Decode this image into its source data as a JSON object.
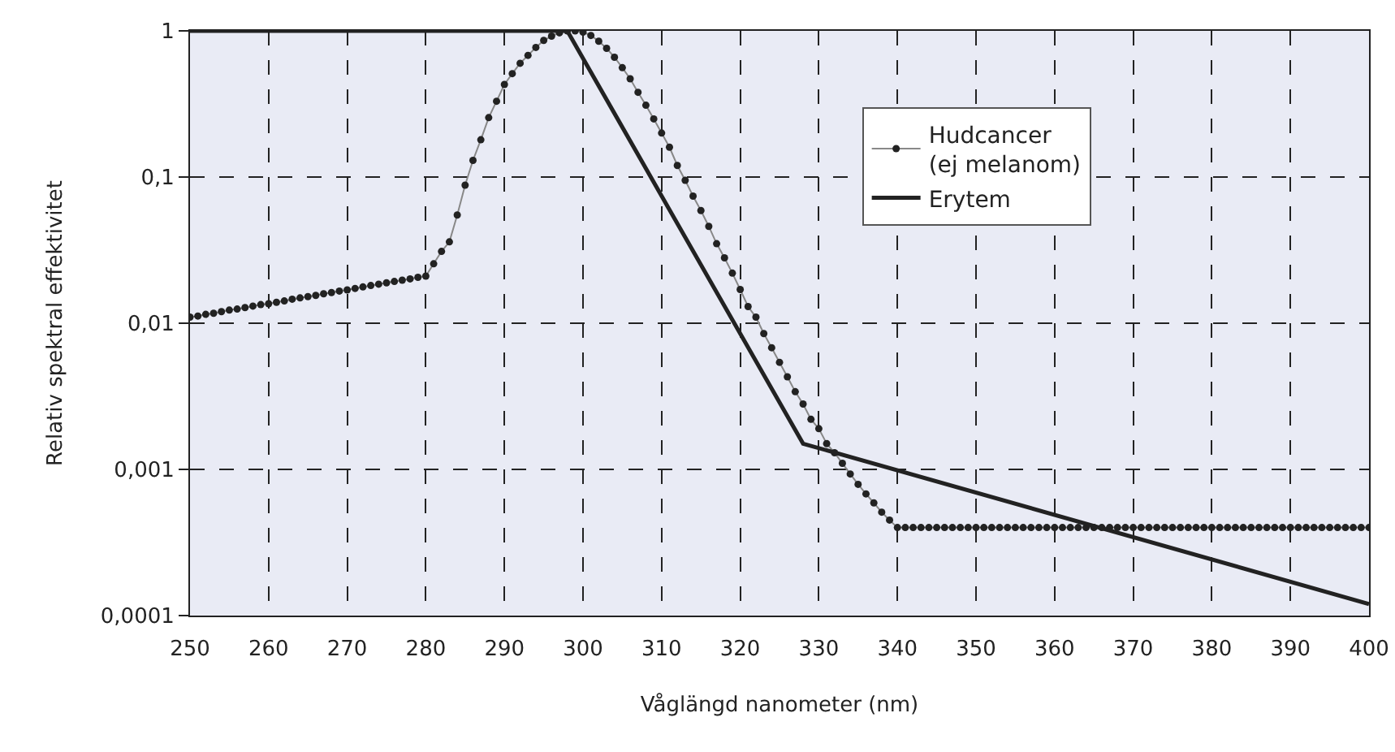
{
  "chart_data": {
    "type": "line",
    "xlabel": "Våglängd nanometer (nm)",
    "ylabel": "Relativ spektral effektivitet",
    "xlim": [
      250,
      400
    ],
    "xticks": [
      250,
      260,
      270,
      280,
      290,
      300,
      310,
      320,
      330,
      340,
      350,
      360,
      370,
      380,
      390,
      400
    ],
    "ylim": [
      0.0001,
      1
    ],
    "yticks": [
      {
        "value": 0.0001,
        "label": "0,0001"
      },
      {
        "value": 0.001,
        "label": "0,001"
      },
      {
        "value": 0.01,
        "label": "0,01"
      },
      {
        "value": 0.1,
        "label": "0,1"
      },
      {
        "value": 1,
        "label": "1"
      }
    ],
    "log": "y",
    "grid": true,
    "legend": "top right",
    "series": [
      {
        "name": "Hudcancer\n(ej melanom)",
        "color": "#222222",
        "marker": "circle",
        "x": [
          250,
          251,
          252,
          253,
          254,
          255,
          256,
          257,
          258,
          259,
          260,
          261,
          262,
          263,
          264,
          265,
          266,
          267,
          268,
          269,
          270,
          271,
          272,
          273,
          274,
          275,
          276,
          277,
          278,
          279,
          280,
          281,
          282,
          283,
          284,
          285,
          286,
          287,
          288,
          289,
          290,
          291,
          292,
          293,
          294,
          295,
          296,
          297,
          298,
          299,
          300,
          301,
          302,
          303,
          304,
          305,
          306,
          307,
          308,
          309,
          310,
          311,
          312,
          313,
          314,
          315,
          316,
          317,
          318,
          319,
          320,
          321,
          322,
          323,
          324,
          325,
          326,
          327,
          328,
          329,
          330,
          331,
          332,
          333,
          334,
          335,
          336,
          337,
          338,
          339,
          340,
          341,
          342,
          343,
          344,
          345,
          346,
          347,
          348,
          349,
          350,
          351,
          352,
          353,
          354,
          355,
          356,
          357,
          358,
          359,
          360,
          361,
          362,
          363,
          364,
          365,
          366,
          367,
          368,
          369,
          370,
          371,
          372,
          373,
          374,
          375,
          376,
          377,
          378,
          379,
          380,
          381,
          382,
          383,
          384,
          385,
          386,
          387,
          388,
          389,
          390,
          391,
          392,
          393,
          394,
          395,
          396,
          397,
          398,
          399,
          400
        ],
        "values": [
          0.011,
          0.0112,
          0.0115,
          0.0117,
          0.012,
          0.0123,
          0.0125,
          0.0128,
          0.0131,
          0.0134,
          0.0136,
          0.0139,
          0.0142,
          0.0146,
          0.0149,
          0.0152,
          0.0155,
          0.0159,
          0.0162,
          0.0166,
          0.0169,
          0.0173,
          0.0177,
          0.0181,
          0.0185,
          0.0189,
          0.0193,
          0.0197,
          0.0201,
          0.0206,
          0.021,
          0.0255,
          0.031,
          0.036,
          0.055,
          0.088,
          0.13,
          0.18,
          0.255,
          0.33,
          0.43,
          0.51,
          0.6,
          0.68,
          0.77,
          0.86,
          0.92,
          0.97,
          1,
          1,
          0.98,
          0.93,
          0.85,
          0.76,
          0.66,
          0.56,
          0.47,
          0.38,
          0.31,
          0.25,
          0.2,
          0.16,
          0.12,
          0.095,
          0.074,
          0.059,
          0.046,
          0.035,
          0.028,
          0.022,
          0.017,
          0.013,
          0.011,
          0.0085,
          0.0068,
          0.0054,
          0.0043,
          0.0034,
          0.0028,
          0.0022,
          0.0019,
          0.0015,
          0.0013,
          0.0011,
          0.00093,
          0.00079,
          0.00068,
          0.00059,
          0.00051,
          0.00045,
          0.0004,
          0.0004,
          0.0004,
          0.0004,
          0.0004,
          0.0004,
          0.0004,
          0.0004,
          0.0004,
          0.0004,
          0.0004,
          0.0004,
          0.0004,
          0.0004,
          0.0004,
          0.0004,
          0.0004,
          0.0004,
          0.0004,
          0.0004,
          0.0004,
          0.0004,
          0.0004,
          0.0004,
          0.0004,
          0.0004,
          0.0004,
          0.0004,
          0.0004,
          0.0004,
          0.0004,
          0.0004,
          0.0004,
          0.0004,
          0.0004,
          0.0004,
          0.0004,
          0.0004,
          0.0004,
          0.0004,
          0.0004,
          0.0004,
          0.0004,
          0.0004,
          0.0004,
          0.0004,
          0.0004,
          0.0004,
          0.0004,
          0.0004,
          0.0004,
          0.0004,
          0.0004,
          0.0004,
          0.0004,
          0.0004,
          0.0004,
          0.0004,
          0.0004,
          0.0004,
          0.0004
        ]
      },
      {
        "name": "Erytem",
        "color": "#222222",
        "marker": "none",
        "x": [
          250,
          298,
          328,
          400
        ],
        "values": [
          1,
          1,
          0.0015,
          0.00012
        ]
      }
    ]
  }
}
